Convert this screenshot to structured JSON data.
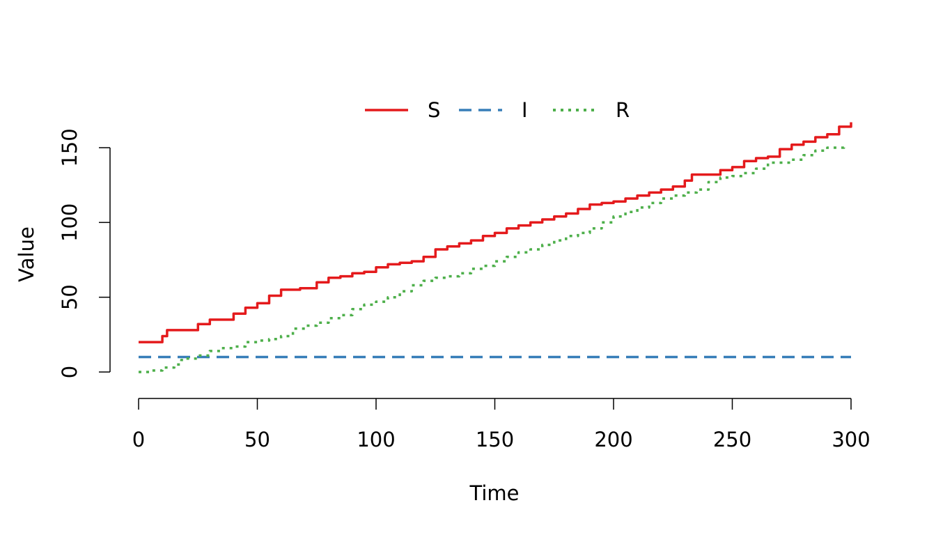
{
  "chart_data": {
    "type": "line",
    "title": "",
    "xlabel": "Time",
    "ylabel": "Value",
    "xlim": [
      0,
      300
    ],
    "ylim": [
      0,
      150
    ],
    "x_ticks": [
      0,
      50,
      100,
      150,
      200,
      250,
      300
    ],
    "y_ticks": [
      0,
      50,
      100,
      150
    ],
    "grid": false,
    "legend_position": "top",
    "series": [
      {
        "name": "S",
        "color": "#E41A1C",
        "dash": "solid",
        "points": [
          [
            0,
            20
          ],
          [
            10,
            24
          ],
          [
            12,
            28
          ],
          [
            18,
            28
          ],
          [
            25,
            32
          ],
          [
            30,
            35
          ],
          [
            35,
            35
          ],
          [
            40,
            39
          ],
          [
            45,
            43
          ],
          [
            50,
            46
          ],
          [
            55,
            51
          ],
          [
            60,
            55
          ],
          [
            68,
            56
          ],
          [
            75,
            60
          ],
          [
            80,
            63
          ],
          [
            85,
            64
          ],
          [
            90,
            66
          ],
          [
            95,
            67
          ],
          [
            100,
            70
          ],
          [
            105,
            72
          ],
          [
            110,
            73
          ],
          [
            115,
            74
          ],
          [
            120,
            77
          ],
          [
            125,
            82
          ],
          [
            130,
            84
          ],
          [
            135,
            86
          ],
          [
            140,
            88
          ],
          [
            145,
            91
          ],
          [
            150,
            93
          ],
          [
            155,
            96
          ],
          [
            160,
            98
          ],
          [
            165,
            100
          ],
          [
            170,
            102
          ],
          [
            175,
            104
          ],
          [
            180,
            106
          ],
          [
            185,
            109
          ],
          [
            190,
            112
          ],
          [
            195,
            113
          ],
          [
            200,
            114
          ],
          [
            205,
            116
          ],
          [
            210,
            118
          ],
          [
            215,
            120
          ],
          [
            220,
            122
          ],
          [
            225,
            124
          ],
          [
            230,
            128
          ],
          [
            233,
            132
          ],
          [
            241,
            132
          ],
          [
            245,
            135
          ],
          [
            250,
            137
          ],
          [
            255,
            141
          ],
          [
            260,
            143
          ],
          [
            265,
            144
          ],
          [
            270,
            149
          ],
          [
            275,
            152
          ],
          [
            280,
            154
          ],
          [
            285,
            157
          ],
          [
            290,
            159
          ],
          [
            295,
            164
          ],
          [
            300,
            167
          ]
        ]
      },
      {
        "name": "I",
        "color": "#377EB8",
        "dash": "dashed",
        "points": [
          [
            0,
            10
          ],
          [
            300,
            10
          ]
        ]
      },
      {
        "name": "R",
        "color": "#4DAF4A",
        "dash": "dotted",
        "points": [
          [
            0,
            0
          ],
          [
            5,
            1
          ],
          [
            10,
            3
          ],
          [
            15,
            5
          ],
          [
            18,
            8
          ],
          [
            20,
            9
          ],
          [
            25,
            11
          ],
          [
            30,
            14
          ],
          [
            35,
            16
          ],
          [
            40,
            17
          ],
          [
            45,
            20
          ],
          [
            50,
            21
          ],
          [
            55,
            22
          ],
          [
            60,
            24
          ],
          [
            65,
            29
          ],
          [
            70,
            31
          ],
          [
            75,
            33
          ],
          [
            80,
            36
          ],
          [
            85,
            38
          ],
          [
            90,
            42
          ],
          [
            95,
            45
          ],
          [
            100,
            47
          ],
          [
            105,
            50
          ],
          [
            110,
            54
          ],
          [
            115,
            58
          ],
          [
            120,
            61
          ],
          [
            125,
            63
          ],
          [
            130,
            64
          ],
          [
            135,
            66
          ],
          [
            140,
            69
          ],
          [
            145,
            71
          ],
          [
            150,
            74
          ],
          [
            155,
            77
          ],
          [
            160,
            80
          ],
          [
            165,
            82
          ],
          [
            170,
            85
          ],
          [
            175,
            88
          ],
          [
            180,
            91
          ],
          [
            185,
            93
          ],
          [
            190,
            96
          ],
          [
            195,
            100
          ],
          [
            200,
            104
          ],
          [
            205,
            107
          ],
          [
            210,
            110
          ],
          [
            215,
            113
          ],
          [
            220,
            116
          ],
          [
            225,
            118
          ],
          [
            230,
            120
          ],
          [
            235,
            122
          ],
          [
            240,
            127
          ],
          [
            245,
            130
          ],
          [
            250,
            131
          ],
          [
            255,
            133
          ],
          [
            260,
            136
          ],
          [
            265,
            140
          ],
          [
            270,
            140
          ],
          [
            275,
            142
          ],
          [
            280,
            145
          ],
          [
            285,
            148
          ],
          [
            290,
            150
          ],
          [
            297,
            152
          ]
        ]
      }
    ]
  }
}
